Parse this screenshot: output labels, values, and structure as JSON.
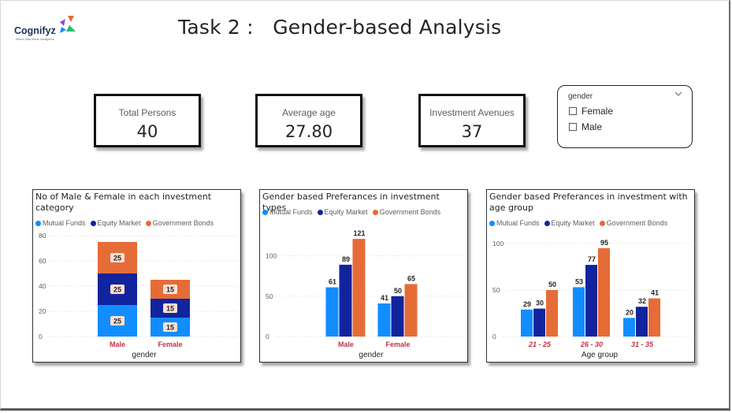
{
  "header": {
    "logo_text": "Cognifyz",
    "logo_tagline": "Where Data Meets Intelligence",
    "title": "Task 2 :   Gender-based Analysis"
  },
  "cards": [
    {
      "label": "Total Persons",
      "value": "40"
    },
    {
      "label": "Average age",
      "value": "27.80"
    },
    {
      "label": "Investment Avenues",
      "value": "37"
    }
  ],
  "slicer": {
    "header": "gender",
    "options": [
      "Female",
      "Male"
    ]
  },
  "colors": {
    "mutual_funds": "#118dff",
    "equity_market": "#12239e",
    "government_bonds": "#e66c37",
    "category_label": "#c4314b"
  },
  "icons": [
    "chevron-down-icon",
    "checkbox-icon",
    "logo-mark-icon"
  ],
  "chart_data": [
    {
      "type": "bar",
      "stacked": true,
      "title": "No of Male & Female in each investment category",
      "xlabel": "gender",
      "ylabel": "",
      "categories": [
        "Male",
        "Female"
      ],
      "series": [
        {
          "name": "Mutual Funds",
          "values": [
            25,
            15
          ]
        },
        {
          "name": "Equity Market",
          "values": [
            25,
            15
          ]
        },
        {
          "name": "Government Bonds",
          "values": [
            25,
            15
          ]
        }
      ],
      "ylim": [
        0,
        80
      ],
      "yticks": [
        0,
        20,
        40,
        60,
        80
      ],
      "legend": "top-left"
    },
    {
      "type": "bar",
      "stacked": false,
      "title": "Gender based Preferances in investment types",
      "xlabel": "gender",
      "ylabel": "",
      "categories": [
        "Male",
        "Female"
      ],
      "series": [
        {
          "name": "Mutual Funds",
          "values": [
            61,
            41
          ]
        },
        {
          "name": "Equity Market",
          "values": [
            89,
            50
          ]
        },
        {
          "name": "Government Bonds",
          "values": [
            121,
            65
          ]
        }
      ],
      "ylim": [
        0,
        125
      ],
      "yticks": [
        0,
        50,
        100
      ],
      "legend": "top-left"
    },
    {
      "type": "bar",
      "stacked": false,
      "title": "Gender based Preferances in investment with age group",
      "xlabel": "Age group",
      "ylabel": "",
      "categories": [
        "21 - 25",
        "26 - 30",
        "31 - 35"
      ],
      "series": [
        {
          "name": "Mutual Funds",
          "values": [
            29,
            53,
            20
          ]
        },
        {
          "name": "Equity Market",
          "values": [
            30,
            77,
            32
          ]
        },
        {
          "name": "Government Bonds",
          "values": [
            50,
            95,
            41
          ]
        }
      ],
      "ylim": [
        0,
        105
      ],
      "yticks": [
        0,
        50,
        100
      ],
      "legend": "top-left"
    }
  ]
}
